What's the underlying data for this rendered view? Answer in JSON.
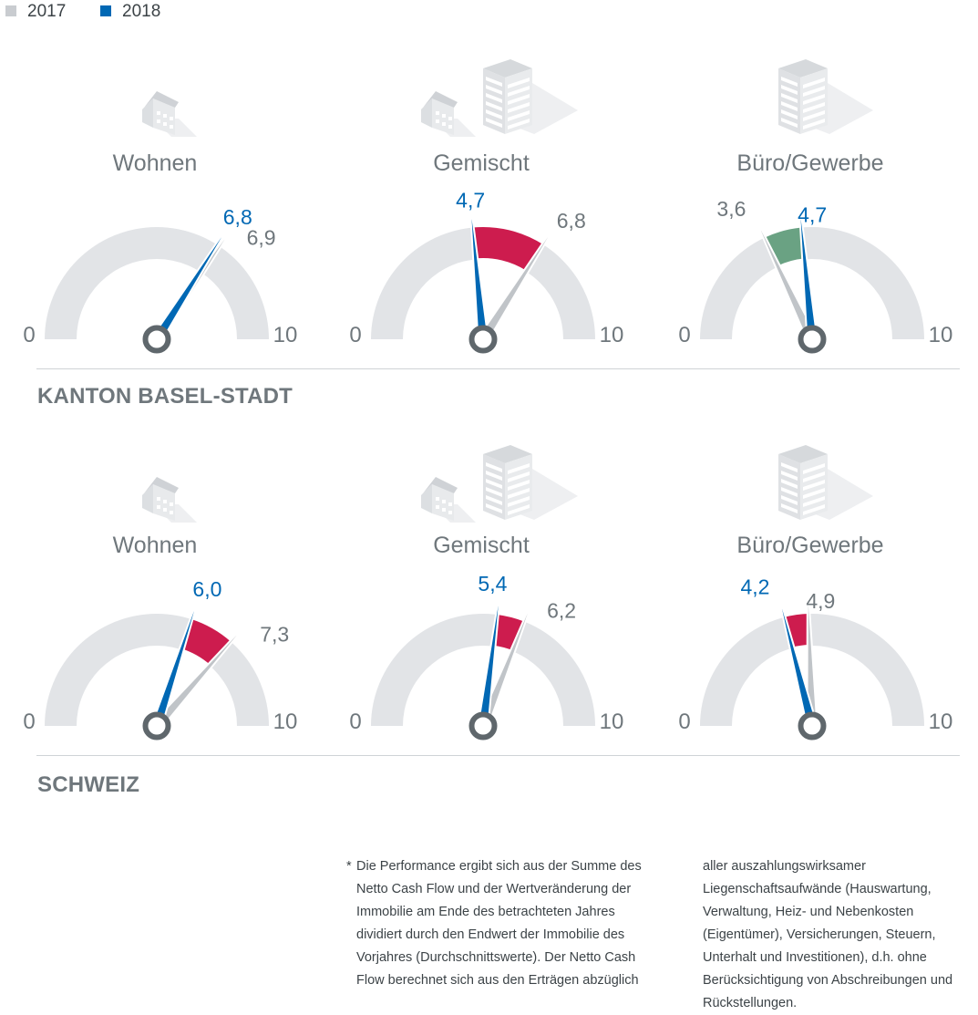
{
  "legend": [
    {
      "label": "2017",
      "color": "#c9ccd0"
    },
    {
      "label": "2018",
      "color": "#0068b4"
    }
  ],
  "colors": {
    "track": "#e2e4e7",
    "needle_2017": "#c0c4c8",
    "needle_2018": "#0068b4",
    "decline": "#cd1c4e",
    "increase": "#6aa283",
    "hub": "#5f676c",
    "label_2017": "#6f777c",
    "label_2018": "#0068b4",
    "title": "#6f777c"
  },
  "sections": [
    {
      "title": "KANTON BASEL-STADT"
    },
    {
      "title": "SCHWEIZ"
    }
  ],
  "chart_data": [
    {
      "type": "gauge",
      "section": "KANTON BASEL-STADT",
      "category": "Wohnen",
      "icon": "house-icon",
      "min": 0,
      "max": 10,
      "min_label": "0",
      "max_label": "10",
      "value_2017": 6.9,
      "value_2018": 6.8,
      "label_2017": "6,9",
      "label_2018": "6,8"
    },
    {
      "type": "gauge",
      "section": "KANTON BASEL-STADT",
      "category": "Gemischt",
      "icon": "house-and-office-icon",
      "min": 0,
      "max": 10,
      "min_label": "0",
      "max_label": "10",
      "value_2017": 6.8,
      "value_2018": 4.7,
      "label_2017": "6,8",
      "label_2018": "4,7"
    },
    {
      "type": "gauge",
      "section": "KANTON BASEL-STADT",
      "category": "Büro/Gewerbe",
      "icon": "office-building-icon",
      "min": 0,
      "max": 10,
      "min_label": "0",
      "max_label": "10",
      "value_2017": 3.6,
      "value_2018": 4.7,
      "label_2017": "3,6",
      "label_2018": "4,7"
    },
    {
      "type": "gauge",
      "section": "SCHWEIZ",
      "category": "Wohnen",
      "icon": "house-icon",
      "min": 0,
      "max": 10,
      "min_label": "0",
      "max_label": "10",
      "value_2017": 7.3,
      "value_2018": 6.0,
      "label_2017": "7,3",
      "label_2018": "6,0"
    },
    {
      "type": "gauge",
      "section": "SCHWEIZ",
      "category": "Gemischt",
      "icon": "house-and-office-icon",
      "min": 0,
      "max": 10,
      "min_label": "0",
      "max_label": "10",
      "value_2017": 6.2,
      "value_2018": 5.4,
      "label_2017": "6,2",
      "label_2018": "5,4"
    },
    {
      "type": "gauge",
      "section": "SCHWEIZ",
      "category": "Büro/Gewerbe",
      "icon": "office-building-icon",
      "min": 0,
      "max": 10,
      "min_label": "0",
      "max_label": "10",
      "value_2017": 4.9,
      "value_2018": 4.2,
      "label_2017": "4,9",
      "label_2018": "4,2"
    }
  ],
  "footnote": {
    "marker": "*",
    "col1": "Die Performance ergibt sich aus der Summe des Netto Cash Flow und der Wertveränderung der Immobilie am Ende des betrachteten Jahres dividiert durch den Endwert der Immobilie des Vorjahres (Durchschnittswerte). Der Netto Cash Flow berechnet sich aus den Erträgen abzüglich",
    "col2": "aller auszahlungswirksamer Liegenschaftsaufwände (Hauswartung, Verwaltung, Heiz- und Nebenkosten (Eigentümer), Versicherungen, Steuern, Unterhalt und Investitionen), d.h. ohne Berücksichtigung von Abschreibungen und Rückstellungen."
  }
}
